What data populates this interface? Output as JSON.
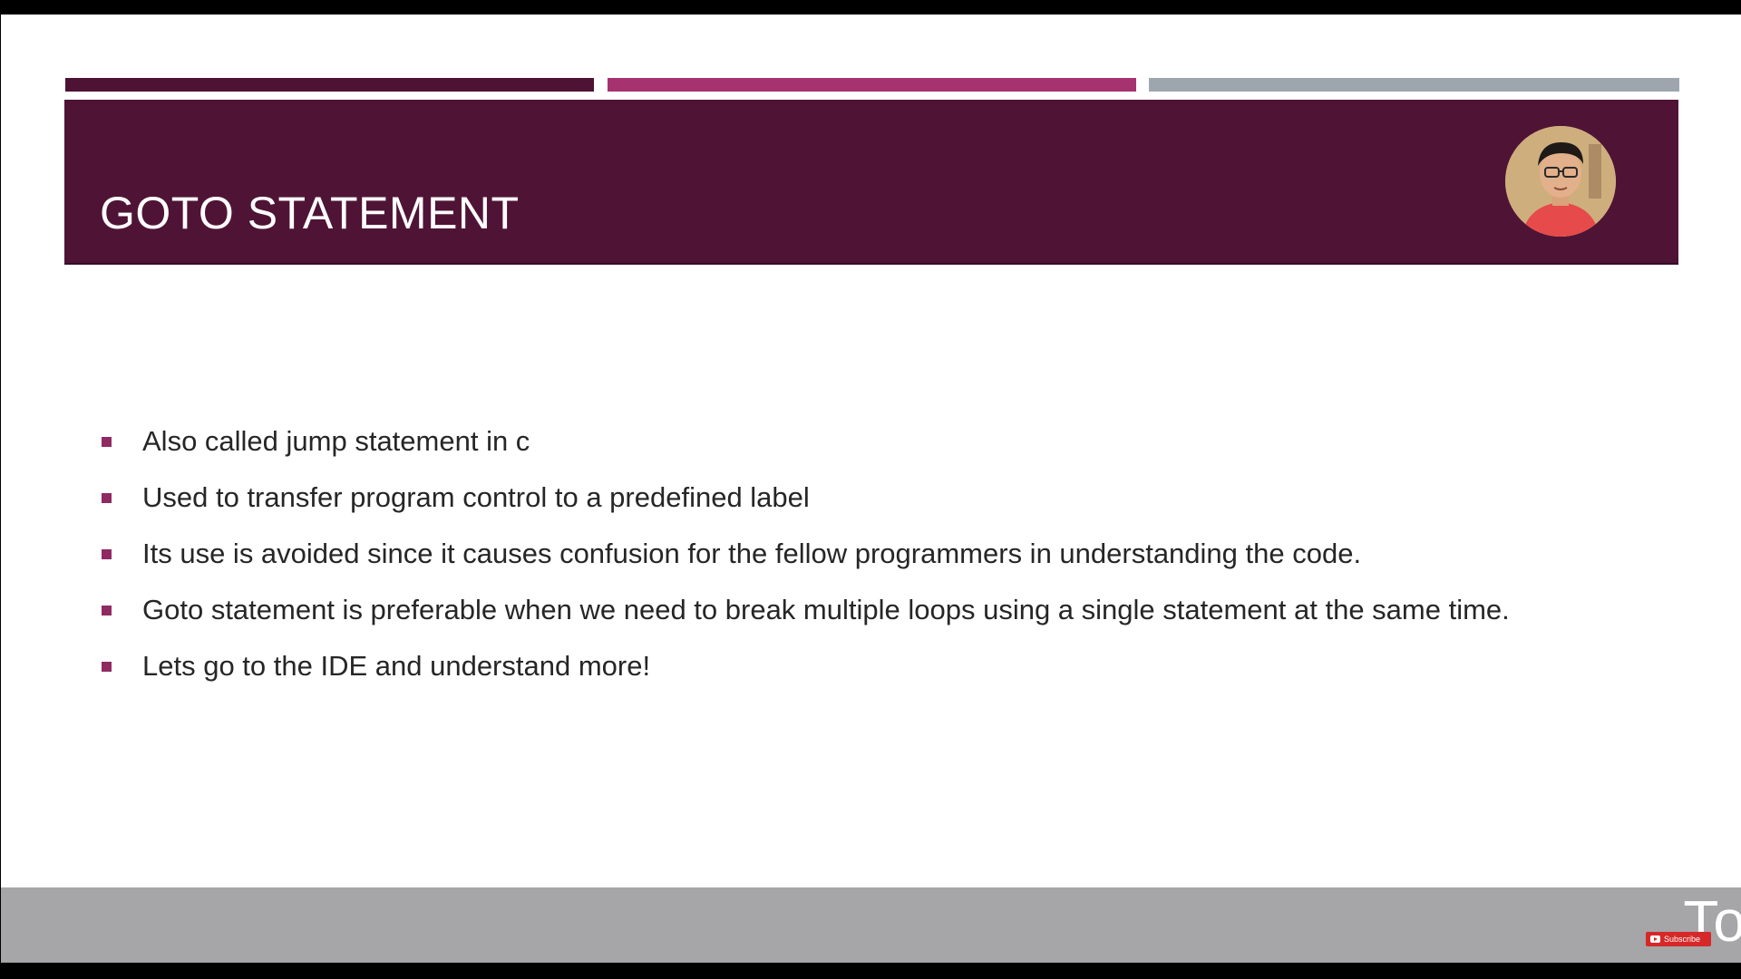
{
  "slide": {
    "title": "GOTO STATEMENT",
    "bullets": [
      "Also called jump statement in c",
      "Used to transfer program control to a predefined label",
      "Its use is avoided since it causes confusion for the fellow programmers in understanding the code.",
      "Goto statement is preferable when we need to break multiple loops using a single statement at the same time.",
      "Lets go to the IDE and understand more!"
    ]
  },
  "overlay": {
    "subscribe_label": "Subscribe",
    "brand_text": "To"
  },
  "colors": {
    "title_band": "#4f1435",
    "accent_dark": "#4d1234",
    "accent_pink": "#a6336f",
    "accent_gray": "#9ea6ad",
    "bullet_marker": "#8f2a63",
    "footer_band": "#a6a5a8",
    "subscribe_red": "#d62828"
  },
  "icons": {
    "presenter": "avatar",
    "subscribe": "youtube-play-icon",
    "bullet": "square-bullet-icon"
  }
}
